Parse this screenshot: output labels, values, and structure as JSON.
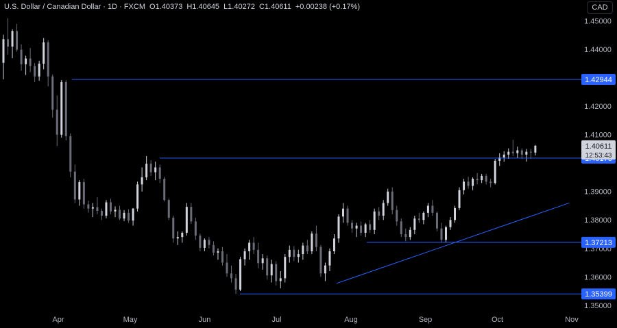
{
  "header": {
    "symbol": "U.S. Dollar / Canadian Dollar · 1D · FXCM",
    "open": "O1.40373",
    "high": "H1.40645",
    "low": "L1.40272",
    "close": "C1.40611",
    "change": "+0.00238 (+0.17%)"
  },
  "currency_button": "CAD",
  "colors": {
    "background": "#000000",
    "up_candle": "#d1d4dc",
    "down_candle": "#6a6d78",
    "level_line": "#2962ff",
    "axis_text": "#b2b5be"
  },
  "price_label": {
    "price": "1.40611",
    "countdown": "12:53:43"
  },
  "chart_data": {
    "type": "candlestick",
    "x_ticks": [
      "Apr",
      "May",
      "Jun",
      "Jul",
      "Aug",
      "Sep",
      "Oct",
      "Nov"
    ],
    "y_ticks": [
      "1.45000",
      "1.44000",
      "1.42000",
      "1.41000",
      "1.39000",
      "1.38000",
      "1.37000",
      "1.36000",
      "1.35000"
    ],
    "ylim": [
      1.3485,
      1.4545
    ],
    "horizontal_levels": [
      "1.42944",
      "1.40176",
      "1.37213",
      "1.35399"
    ],
    "trendline": {
      "from": {
        "date": "2024-07-26",
        "price": 1.3577
      },
      "to": {
        "date": "2024-10-31",
        "price": 1.386
      }
    },
    "candles": [
      [
        1.4353,
        1.4452,
        1.4295,
        1.4436
      ],
      [
        1.4436,
        1.451,
        1.4382,
        1.441
      ],
      [
        1.441,
        1.4471,
        1.4369,
        1.4465
      ],
      [
        1.4465,
        1.449,
        1.4392,
        1.4399
      ],
      [
        1.4399,
        1.4418,
        1.4325,
        1.4348
      ],
      [
        1.4348,
        1.4378,
        1.431,
        1.4368
      ],
      [
        1.4368,
        1.4405,
        1.432,
        1.4342
      ],
      [
        1.4342,
        1.4352,
        1.4285,
        1.4305
      ],
      [
        1.4305,
        1.436,
        1.429,
        1.435
      ],
      [
        1.435,
        1.444,
        1.433,
        1.4425
      ],
      [
        1.4425,
        1.4432,
        1.427,
        1.4305
      ],
      [
        1.4305,
        1.4312,
        1.416,
        1.4188
      ],
      [
        1.4188,
        1.4238,
        1.406,
        1.41
      ],
      [
        1.41,
        1.4292,
        1.409,
        1.4285
      ],
      [
        1.4285,
        1.4292,
        1.408,
        1.4095
      ],
      [
        1.4095,
        1.4105,
        1.395,
        1.397
      ],
      [
        1.397,
        1.3995,
        1.386,
        1.3872
      ],
      [
        1.3872,
        1.394,
        1.385,
        1.3933
      ],
      [
        1.3933,
        1.3945,
        1.384,
        1.3855
      ],
      [
        1.3855,
        1.3868,
        1.3826,
        1.384
      ],
      [
        1.384,
        1.386,
        1.381,
        1.3845
      ],
      [
        1.3845,
        1.388,
        1.382,
        1.3832
      ],
      [
        1.3832,
        1.384,
        1.38,
        1.3815
      ],
      [
        1.3815,
        1.387,
        1.3806,
        1.3862
      ],
      [
        1.3862,
        1.3875,
        1.382,
        1.383
      ],
      [
        1.383,
        1.3848,
        1.381,
        1.3836
      ],
      [
        1.3836,
        1.385,
        1.38,
        1.3805
      ],
      [
        1.3805,
        1.3835,
        1.3796,
        1.3825
      ],
      [
        1.3825,
        1.3838,
        1.379,
        1.3798
      ],
      [
        1.3798,
        1.3842,
        1.378,
        1.384
      ],
      [
        1.384,
        1.3935,
        1.383,
        1.3925
      ],
      [
        1.3925,
        1.3985,
        1.39,
        1.395
      ],
      [
        1.395,
        1.4025,
        1.394,
        1.3998
      ],
      [
        1.3998,
        1.401,
        1.3955,
        1.3968
      ],
      [
        1.3968,
        1.4005,
        1.394,
        1.3985
      ],
      [
        1.3985,
        1.3995,
        1.393,
        1.3945
      ],
      [
        1.3945,
        1.3952,
        1.3865,
        1.387
      ],
      [
        1.387,
        1.3875,
        1.38,
        1.3808
      ],
      [
        1.3808,
        1.3815,
        1.372,
        1.3735
      ],
      [
        1.3735,
        1.376,
        1.3712,
        1.374
      ],
      [
        1.374,
        1.376,
        1.372,
        1.3755
      ],
      [
        1.3755,
        1.386,
        1.3745,
        1.3846
      ],
      [
        1.3846,
        1.386,
        1.3786,
        1.3795
      ],
      [
        1.3795,
        1.3808,
        1.373,
        1.3745
      ],
      [
        1.3745,
        1.3752,
        1.369,
        1.3702
      ],
      [
        1.3702,
        1.3735,
        1.369,
        1.373
      ],
      [
        1.373,
        1.374,
        1.37,
        1.3712
      ],
      [
        1.3712,
        1.3725,
        1.3675,
        1.3685
      ],
      [
        1.3685,
        1.37,
        1.366,
        1.369
      ],
      [
        1.369,
        1.3705,
        1.364,
        1.365
      ],
      [
        1.365,
        1.368,
        1.36,
        1.3612
      ],
      [
        1.3612,
        1.364,
        1.358,
        1.3595
      ],
      [
        1.3595,
        1.361,
        1.354,
        1.3555
      ],
      [
        1.3555,
        1.367,
        1.355,
        1.3662
      ],
      [
        1.3662,
        1.37,
        1.364,
        1.369
      ],
      [
        1.369,
        1.373,
        1.366,
        1.372
      ],
      [
        1.372,
        1.374,
        1.368,
        1.3695
      ],
      [
        1.3695,
        1.372,
        1.363,
        1.3648
      ],
      [
        1.3648,
        1.368,
        1.3625,
        1.3665
      ],
      [
        1.3665,
        1.3675,
        1.359,
        1.3605
      ],
      [
        1.3605,
        1.366,
        1.358,
        1.3645
      ],
      [
        1.3645,
        1.3655,
        1.357,
        1.3585
      ],
      [
        1.3585,
        1.362,
        1.356,
        1.3595
      ],
      [
        1.3595,
        1.368,
        1.358,
        1.367
      ],
      [
        1.367,
        1.371,
        1.365,
        1.3695
      ],
      [
        1.3695,
        1.3708,
        1.3655,
        1.367
      ],
      [
        1.367,
        1.3695,
        1.365,
        1.368
      ],
      [
        1.368,
        1.372,
        1.366,
        1.371
      ],
      [
        1.371,
        1.373,
        1.368,
        1.369
      ],
      [
        1.369,
        1.376,
        1.368,
        1.3752
      ],
      [
        1.3752,
        1.378,
        1.369,
        1.3705
      ],
      [
        1.3705,
        1.3712,
        1.36,
        1.3612
      ],
      [
        1.3612,
        1.365,
        1.3585,
        1.364
      ],
      [
        1.364,
        1.37,
        1.362,
        1.369
      ],
      [
        1.369,
        1.375,
        1.368,
        1.3735
      ],
      [
        1.3735,
        1.382,
        1.372,
        1.3812
      ],
      [
        1.3812,
        1.386,
        1.379,
        1.384
      ],
      [
        1.384,
        1.385,
        1.378,
        1.379
      ],
      [
        1.379,
        1.38,
        1.3755,
        1.377
      ],
      [
        1.377,
        1.379,
        1.374,
        1.378
      ],
      [
        1.378,
        1.3795,
        1.3745,
        1.3755
      ],
      [
        1.3755,
        1.379,
        1.374,
        1.3785
      ],
      [
        1.3785,
        1.38,
        1.3755,
        1.3765
      ],
      [
        1.3765,
        1.384,
        1.375,
        1.383
      ],
      [
        1.383,
        1.3845,
        1.38,
        1.3815
      ],
      [
        1.3815,
        1.387,
        1.38,
        1.386
      ],
      [
        1.386,
        1.391,
        1.385,
        1.39
      ],
      [
        1.39,
        1.3915,
        1.382,
        1.3835
      ],
      [
        1.3835,
        1.385,
        1.378,
        1.3795
      ],
      [
        1.3795,
        1.3805,
        1.374,
        1.375
      ],
      [
        1.375,
        1.377,
        1.3725,
        1.374
      ],
      [
        1.374,
        1.3775,
        1.373,
        1.3765
      ],
      [
        1.3765,
        1.3815,
        1.375,
        1.3805
      ],
      [
        1.3805,
        1.3825,
        1.379,
        1.38
      ],
      [
        1.38,
        1.383,
        1.3785,
        1.3825
      ],
      [
        1.3825,
        1.386,
        1.381,
        1.385
      ],
      [
        1.385,
        1.387,
        1.3815,
        1.3825
      ],
      [
        1.3825,
        1.383,
        1.376,
        1.377
      ],
      [
        1.377,
        1.379,
        1.372,
        1.373
      ],
      [
        1.373,
        1.378,
        1.372,
        1.3775
      ],
      [
        1.3775,
        1.381,
        1.3765,
        1.38
      ],
      [
        1.38,
        1.385,
        1.379,
        1.3842
      ],
      [
        1.3842,
        1.3915,
        1.3835,
        1.3905
      ],
      [
        1.3905,
        1.3945,
        1.389,
        1.3935
      ],
      [
        1.3935,
        1.3952,
        1.391,
        1.392
      ],
      [
        1.392,
        1.395,
        1.3905,
        1.3945
      ],
      [
        1.3945,
        1.3965,
        1.3925,
        1.394
      ],
      [
        1.394,
        1.3962,
        1.393,
        1.3955
      ],
      [
        1.3955,
        1.3962,
        1.3925,
        1.3935
      ],
      [
        1.3935,
        1.3945,
        1.3915,
        1.393
      ],
      [
        1.393,
        1.4015,
        1.3925,
        1.4008
      ],
      [
        1.4008,
        1.4035,
        1.399,
        1.402
      ],
      [
        1.402,
        1.4042,
        1.4005,
        1.403
      ],
      [
        1.403,
        1.4052,
        1.4015,
        1.404
      ],
      [
        1.404,
        1.4082,
        1.4025,
        1.4035
      ],
      [
        1.4035,
        1.4058,
        1.4018,
        1.4045
      ],
      [
        1.4045,
        1.4052,
        1.4015,
        1.403
      ],
      [
        1.403,
        1.405,
        1.4005,
        1.404
      ],
      [
        1.404,
        1.405,
        1.4015,
        1.4037
      ],
      [
        1.4037,
        1.4064,
        1.4027,
        1.4061
      ]
    ],
    "title": "U.S. Dollar / Canadian Dollar · 1D · FXCM"
  }
}
